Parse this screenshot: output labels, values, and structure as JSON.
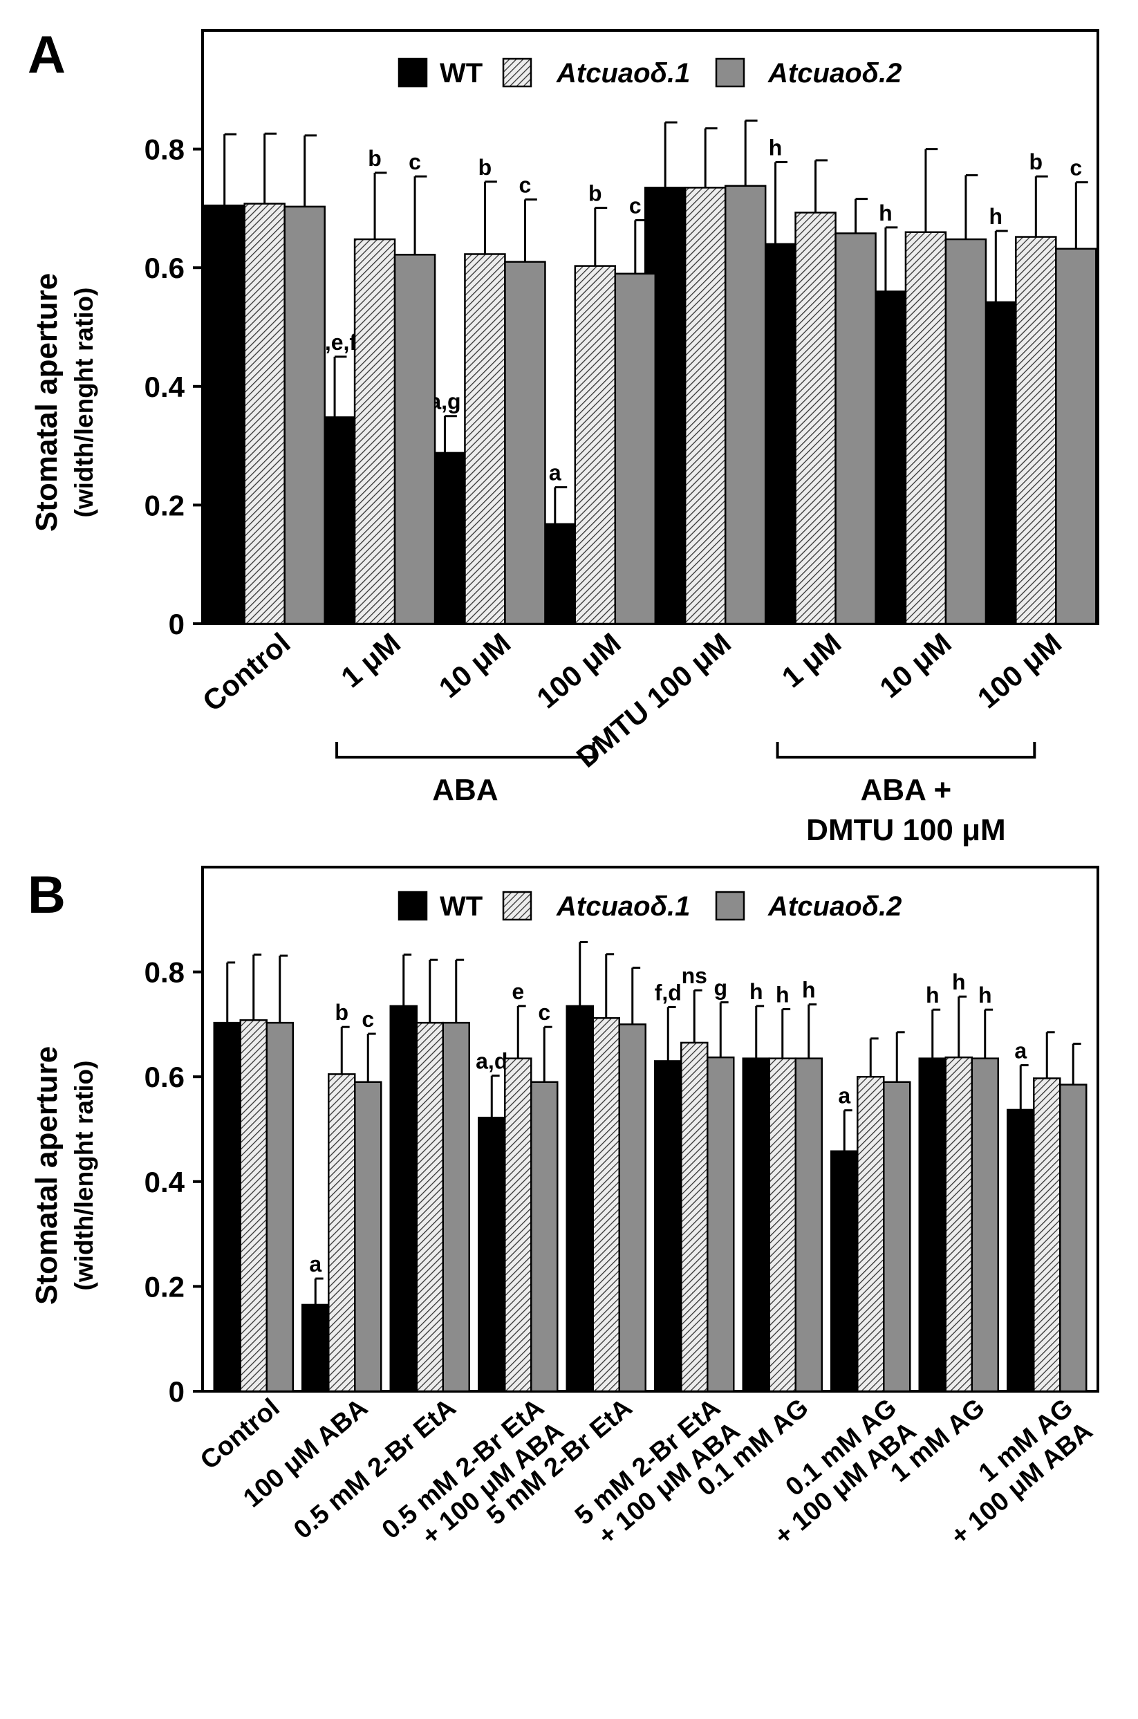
{
  "chart_data": [
    {
      "panel_label": "A",
      "type": "bar",
      "ylabel": "Stomatal aperture",
      "ylabel_sub": "(width/lenght ratio)",
      "ylim": [
        0,
        1.0
      ],
      "yticks": [
        "0",
        "0.2",
        "0.4",
        "0.6",
        "0.8"
      ],
      "ytick_values": [
        0,
        0.2,
        0.4,
        0.6,
        0.8
      ],
      "grid": false,
      "legend_position": "top-center",
      "categories": [
        "Control",
        "1 μM",
        "10 μM",
        "100 μM",
        "DMTU 100 μM",
        "1 μM",
        "10 μM",
        "100 μM"
      ],
      "groups": [
        {
          "label": "ABA",
          "from": 1,
          "to": 3
        },
        {
          "label": "ABA +",
          "label2": "DMTU 100 μM",
          "from": 5,
          "to": 7
        }
      ],
      "series": [
        {
          "name": "WT",
          "color": "#000000",
          "pattern": "solid",
          "values": [
            0.705,
            0.348,
            0.288,
            0.168,
            0.735,
            0.64,
            0.56,
            0.542
          ],
          "errors": [
            0.12,
            0.102,
            0.062,
            0.062,
            0.11,
            0.138,
            0.108,
            0.12
          ],
          "letters": [
            "",
            "a,e,f",
            "a,g",
            "a",
            "",
            "h",
            "h",
            "h"
          ]
        },
        {
          "name": "Atcuaoδ.1",
          "color": "#bfbfbf",
          "pattern": "hatch",
          "values": [
            0.708,
            0.648,
            0.623,
            0.603,
            0.735,
            0.693,
            0.66,
            0.652
          ],
          "errors": [
            0.118,
            0.112,
            0.122,
            0.098,
            0.1,
            0.088,
            0.14,
            0.102
          ],
          "letters": [
            "",
            "b",
            "b",
            "b",
            "",
            "",
            "",
            "b"
          ]
        },
        {
          "name": "Atcuaoδ.2",
          "color": "#8c8c8c",
          "pattern": "solid",
          "values": [
            0.703,
            0.622,
            0.61,
            0.59,
            0.738,
            0.658,
            0.648,
            0.632
          ],
          "errors": [
            0.12,
            0.132,
            0.105,
            0.09,
            0.11,
            0.058,
            0.108,
            0.112
          ],
          "letters": [
            "",
            "c",
            "c",
            "c",
            "",
            "",
            "",
            "c"
          ]
        }
      ]
    },
    {
      "panel_label": "B",
      "type": "bar",
      "ylabel": "Stomatal aperture",
      "ylabel_sub": "(width/lenght ratio)",
      "ylim": [
        0,
        1.0
      ],
      "yticks": [
        "0",
        "0.2",
        "0.4",
        "0.6",
        "0.8"
      ],
      "ytick_values": [
        0,
        0.2,
        0.4,
        0.6,
        0.8
      ],
      "grid": false,
      "legend_position": "top-center",
      "categories": [
        [
          "Control"
        ],
        [
          "100 μM ABA"
        ],
        [
          "0.5 mM 2-Br EtA"
        ],
        [
          "0.5 mM 2-Br EtA",
          "+ 100 μM ABA"
        ],
        [
          "5 mM 2-Br EtA"
        ],
        [
          "5 mM 2-Br EtA",
          "+ 100 μM ABA"
        ],
        [
          "0.1 mM AG"
        ],
        [
          "0.1 mM AG",
          "+ 100 μM ABA"
        ],
        [
          "1 mM AG"
        ],
        [
          "1 mM AG",
          "+ 100 μM ABA"
        ]
      ],
      "series": [
        {
          "name": "WT",
          "color": "#000000",
          "pattern": "solid",
          "values": [
            0.703,
            0.165,
            0.735,
            0.522,
            0.735,
            0.63,
            0.635,
            0.458,
            0.635,
            0.537
          ],
          "errors": [
            0.115,
            0.05,
            0.098,
            0.08,
            0.122,
            0.103,
            0.1,
            0.078,
            0.093,
            0.085
          ],
          "letters": [
            "",
            "a",
            "",
            "a,d",
            "",
            "f,d",
            "h",
            "a",
            "h",
            "a"
          ]
        },
        {
          "name": "Atcuaoδ.1",
          "color": "#bfbfbf",
          "pattern": "hatch",
          "values": [
            0.708,
            0.605,
            0.703,
            0.635,
            0.712,
            0.665,
            0.635,
            0.6,
            0.637,
            0.597
          ],
          "errors": [
            0.125,
            0.09,
            0.12,
            0.1,
            0.122,
            0.1,
            0.094,
            0.073,
            0.116,
            0.088
          ],
          "letters": [
            "",
            "b",
            "",
            "e",
            "",
            "ns",
            "h",
            "",
            "h",
            ""
          ]
        },
        {
          "name": "Atcuaoδ.2",
          "color": "#8c8c8c",
          "pattern": "solid",
          "values": [
            0.703,
            0.59,
            0.703,
            0.59,
            0.7,
            0.637,
            0.635,
            0.59,
            0.635,
            0.585
          ],
          "errors": [
            0.128,
            0.092,
            0.12,
            0.105,
            0.108,
            0.105,
            0.103,
            0.095,
            0.093,
            0.078
          ],
          "letters": [
            "",
            "c",
            "",
            "c",
            "",
            "g",
            "h",
            "",
            "h",
            ""
          ]
        }
      ]
    }
  ]
}
